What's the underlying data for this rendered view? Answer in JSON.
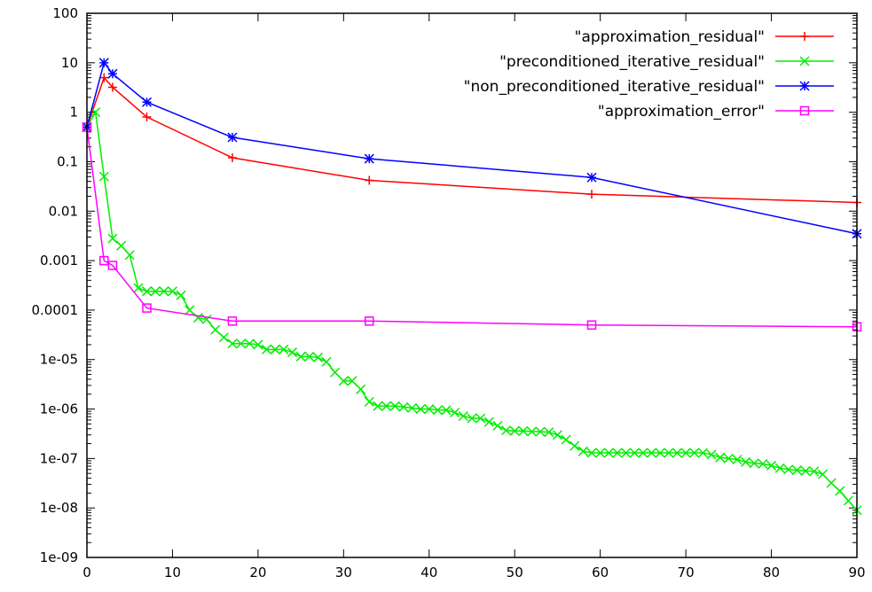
{
  "chart_data": {
    "type": "line",
    "title": "",
    "xlabel": "",
    "ylabel": "",
    "xlim": [
      0,
      90
    ],
    "ylim": [
      1e-09,
      100
    ],
    "yscale": "log",
    "grid": false,
    "legend_position": "top-right",
    "x_ticks": [
      "0",
      "10",
      "20",
      "30",
      "40",
      "50",
      "60",
      "70",
      "80",
      "90"
    ],
    "y_ticks": [
      "1e-09",
      "1e-08",
      "1e-07",
      "1e-06",
      "1e-05",
      "0.0001",
      "0.001",
      "0.01",
      "0.1",
      "1",
      "10",
      "100"
    ],
    "series": [
      {
        "name": "\"approximation_residual\"",
        "color": "#ff0000",
        "marker": "plus",
        "x": [
          0,
          2,
          3,
          7,
          17,
          33,
          59,
          90
        ],
        "y": [
          0.5,
          5,
          3.2,
          0.8,
          0.12,
          0.042,
          0.022,
          0.015
        ]
      },
      {
        "name": "\"preconditioned_iterative_residual\"",
        "color": "#00ee00",
        "marker": "cross",
        "x": [
          0,
          1,
          2,
          3,
          4,
          5,
          6,
          7,
          8,
          9,
          10,
          11,
          12,
          13,
          14,
          15,
          16,
          17,
          18,
          19,
          20,
          21,
          22,
          23,
          24,
          25,
          26,
          27,
          28,
          29,
          30,
          31,
          32,
          33,
          34,
          35,
          36,
          37,
          38,
          39,
          40,
          41,
          42,
          43,
          44,
          45,
          46,
          47,
          48,
          49,
          50,
          51,
          52,
          53,
          54,
          55,
          56,
          57,
          58,
          59,
          60,
          61,
          62,
          63,
          64,
          65,
          66,
          67,
          68,
          69,
          70,
          71,
          72,
          73,
          74,
          75,
          76,
          77,
          78,
          79,
          80,
          81,
          82,
          83,
          84,
          85,
          86,
          87,
          88,
          89,
          90
        ],
        "y": [
          0.5,
          1.0,
          0.05,
          0.0028,
          0.002,
          0.0013,
          0.00028,
          0.00024,
          0.00024,
          0.00024,
          0.00024,
          0.0002,
          0.0001,
          7e-05,
          6.5e-05,
          4e-05,
          2.8e-05,
          2.1e-05,
          2.1e-05,
          2.1e-05,
          2e-05,
          1.6e-05,
          1.6e-05,
          1.6e-05,
          1.4e-05,
          1.15e-05,
          1.15e-05,
          1.1e-05,
          9e-06,
          5.5e-06,
          3.7e-06,
          3.7e-06,
          2.5e-06,
          1.4e-06,
          1.15e-06,
          1.15e-06,
          1.15e-06,
          1.1e-06,
          1.05e-06,
          1e-06,
          1e-06,
          9.5e-07,
          9.5e-07,
          8.5e-07,
          7.2e-07,
          6.5e-07,
          6.5e-07,
          5.5e-07,
          4.6e-07,
          3.7e-07,
          3.6e-07,
          3.6e-07,
          3.5e-07,
          3.5e-07,
          3.4e-07,
          3e-07,
          2.4e-07,
          1.8e-07,
          1.4e-07,
          1.3e-07,
          1.3e-07,
          1.3e-07,
          1.3e-07,
          1.3e-07,
          1.3e-07,
          1.3e-07,
          1.3e-07,
          1.3e-07,
          1.3e-07,
          1.3e-07,
          1.3e-07,
          1.3e-07,
          1.3e-07,
          1.2e-07,
          1.05e-07,
          1e-07,
          9.5e-08,
          8.5e-08,
          8e-08,
          7.8e-08,
          7.2e-08,
          6.4e-08,
          6e-08,
          5.8e-08,
          5.6e-08,
          5.5e-08,
          4.8e-08,
          3.2e-08,
          2.2e-08,
          1.4e-08,
          9e-09
        ]
      },
      {
        "name": "\"non_preconditioned_iterative_residual\"",
        "color": "#0000ff",
        "marker": "star",
        "x": [
          0,
          2,
          3,
          7,
          17,
          33,
          59,
          90
        ],
        "y": [
          0.5,
          10,
          6,
          1.6,
          0.31,
          0.115,
          0.048,
          0.0035
        ]
      },
      {
        "name": "\"approximation_error\"",
        "color": "#ff00ff",
        "marker": "square",
        "x": [
          0,
          2,
          3,
          7,
          17,
          33,
          59,
          90
        ],
        "y": [
          0.5,
          0.001,
          0.0008,
          0.00011,
          6e-05,
          6e-05,
          5e-05,
          4.6e-05
        ]
      }
    ]
  }
}
